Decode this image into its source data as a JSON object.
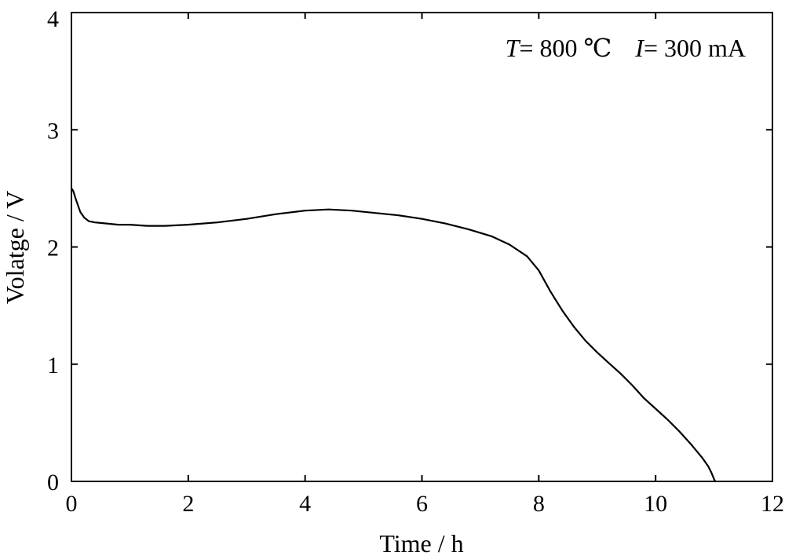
{
  "chart_data": {
    "type": "line",
    "title": "",
    "xlabel": "Time / h",
    "ylabel": "Volatge / V",
    "xlim": [
      0,
      12
    ],
    "ylim": [
      0,
      4
    ],
    "xticks": [
      0,
      2,
      4,
      6,
      8,
      10,
      12
    ],
    "yticks": [
      0,
      1,
      2,
      3,
      4
    ],
    "xtick_labels": [
      "0",
      "2",
      "4",
      "6",
      "8",
      "10",
      "12"
    ],
    "ytick_labels": [
      "0",
      "1",
      "2",
      "3",
      "4"
    ],
    "grid": false,
    "legend": "none",
    "annotation": {
      "t_symbol": "T",
      "t_value": "= 800 ℃",
      "i_symbol": "I",
      "i_value": "= 300 mA"
    },
    "series": [
      {
        "name": "Voltage",
        "color": "#000000",
        "x": [
          0,
          0.03,
          0.08,
          0.15,
          0.22,
          0.3,
          0.4,
          0.6,
          0.8,
          1.0,
          1.3,
          1.6,
          2.0,
          2.5,
          3.0,
          3.5,
          4.0,
          4.4,
          4.8,
          5.2,
          5.6,
          6.0,
          6.4,
          6.8,
          7.2,
          7.5,
          7.8,
          8.0,
          8.2,
          8.4,
          8.6,
          8.8,
          9.0,
          9.2,
          9.4,
          9.6,
          9.8,
          10.0,
          10.2,
          10.4,
          10.6,
          10.8,
          10.9,
          10.95,
          11.0,
          11.02
        ],
        "y": [
          2.5,
          2.48,
          2.4,
          2.3,
          2.25,
          2.22,
          2.21,
          2.2,
          2.19,
          2.19,
          2.18,
          2.18,
          2.19,
          2.21,
          2.24,
          2.28,
          2.31,
          2.32,
          2.31,
          2.29,
          2.27,
          2.24,
          2.2,
          2.15,
          2.09,
          2.02,
          1.92,
          1.8,
          1.62,
          1.46,
          1.32,
          1.2,
          1.1,
          1.01,
          0.92,
          0.82,
          0.71,
          0.62,
          0.53,
          0.43,
          0.32,
          0.2,
          0.13,
          0.08,
          0.02,
          0.0
        ]
      }
    ]
  }
}
